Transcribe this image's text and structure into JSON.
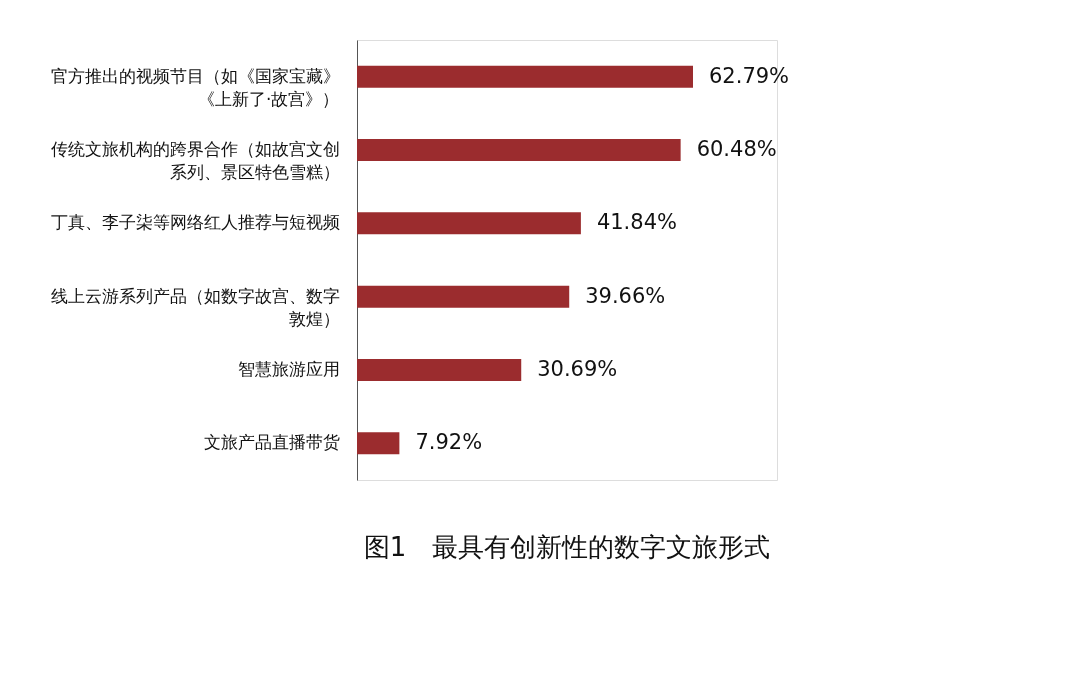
{
  "chart_data": {
    "type": "bar",
    "orientation": "horizontal",
    "title": "图1　最具有创新性的数字文旅形式",
    "categories": [
      "官方推出的视频节目（如《国家宝藏》《上新了·故宫》）",
      "传统文旅机构的跨界合作（如故宫文创系列、景区特色雪糕）",
      "丁真、李子柒等网络红人推荐与短视频",
      "线上云游系列产品（如数字故宫、数字敦煌）",
      "智慧旅游应用",
      "文旅产品直播带货"
    ],
    "values": [
      62.79,
      60.48,
      41.84,
      39.66,
      30.69,
      7.92
    ],
    "value_labels": [
      "62.79%",
      "60.48%",
      "41.84%",
      "39.66%",
      "30.69%",
      "7.92%"
    ],
    "color": "#9b2c2e",
    "tick_labels": "y"
  }
}
